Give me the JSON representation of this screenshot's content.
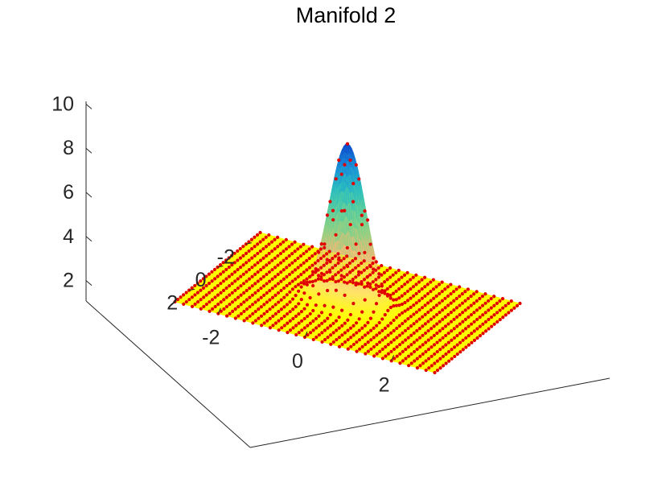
{
  "chart_data": {
    "type": "surface",
    "title": "Manifold 2",
    "xlabel": "",
    "ylabel": "",
    "zlabel": "",
    "xlim": [
      -3,
      3
    ],
    "ylim": [
      -3,
      3
    ],
    "zlim": [
      0,
      10
    ],
    "x_ticks": [
      -2,
      0,
      2
    ],
    "y_ticks": [
      -2,
      0,
      2
    ],
    "z_ticks": [
      2,
      4,
      6,
      8,
      10
    ],
    "x_tick_labels": [
      "-2",
      "0",
      "2"
    ],
    "y_tick_labels": [
      "-2",
      "0",
      "2"
    ],
    "z_tick_labels": [
      "2",
      "4",
      "6",
      "8",
      "10"
    ],
    "surface": {
      "function": "1 + 7.2 * exp(-(x^2 + y^2) / 0.32)",
      "base_z": 1,
      "peak_z": 8.2,
      "peak_at": [
        0,
        0
      ],
      "grid_range": [
        -3,
        3
      ],
      "grid_points_per_axis": 31
    },
    "colormap": [
      "#0d47ca",
      "#1a8fd8",
      "#2bbfbf",
      "#5fcf9a",
      "#9bd080",
      "#f0b878",
      "#ffe36a",
      "#ffff00"
    ],
    "marker_color": "#e00000",
    "grid": false,
    "box": false
  }
}
